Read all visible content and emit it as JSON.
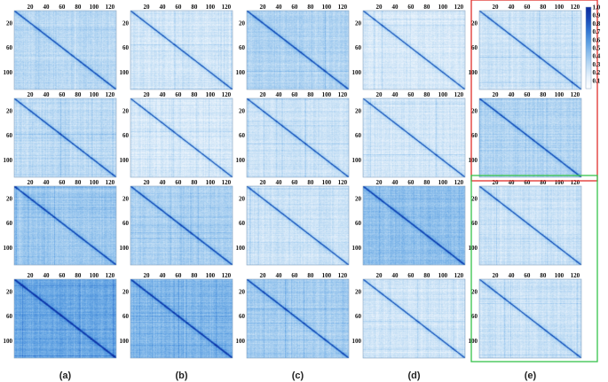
{
  "chart_data": {
    "type": "heatmap",
    "grid": {
      "rows": 4,
      "cols": 5,
      "column_labels": [
        "(a)",
        "(b)",
        "(c)",
        "(d)",
        "(e)"
      ]
    },
    "matrix_size": 128,
    "axis_ticks": [
      "20",
      "40",
      "60",
      "80",
      "100",
      "120"
    ],
    "colorbar": {
      "range": [
        0,
        1.0
      ],
      "ticks": [
        "1.0",
        "0.9",
        "0.8",
        "0.7",
        "0.6",
        "0.5",
        "0.4",
        "0.3",
        "0.2",
        "0.1"
      ],
      "colors": [
        "#ffffff",
        "#e6f1fb",
        "#bfdcf4",
        "#8fc0ec",
        "#5b9ee1",
        "#3074d1",
        "#1748b6",
        "#0c2a9c"
      ]
    },
    "panel_base_intensity": [
      [
        0.3,
        0.22,
        0.32,
        0.2,
        0.24
      ],
      [
        0.28,
        0.2,
        0.24,
        0.22,
        0.33
      ],
      [
        0.38,
        0.34,
        0.24,
        0.42,
        0.24
      ],
      [
        0.52,
        0.46,
        0.36,
        0.22,
        0.24
      ]
    ],
    "highlight_boxes": [
      {
        "color": "#e0302b",
        "rows": [
          0,
          1
        ],
        "col": 4
      },
      {
        "color": "#35c24a",
        "rows": [
          2,
          3
        ],
        "col": 4
      }
    ]
  }
}
